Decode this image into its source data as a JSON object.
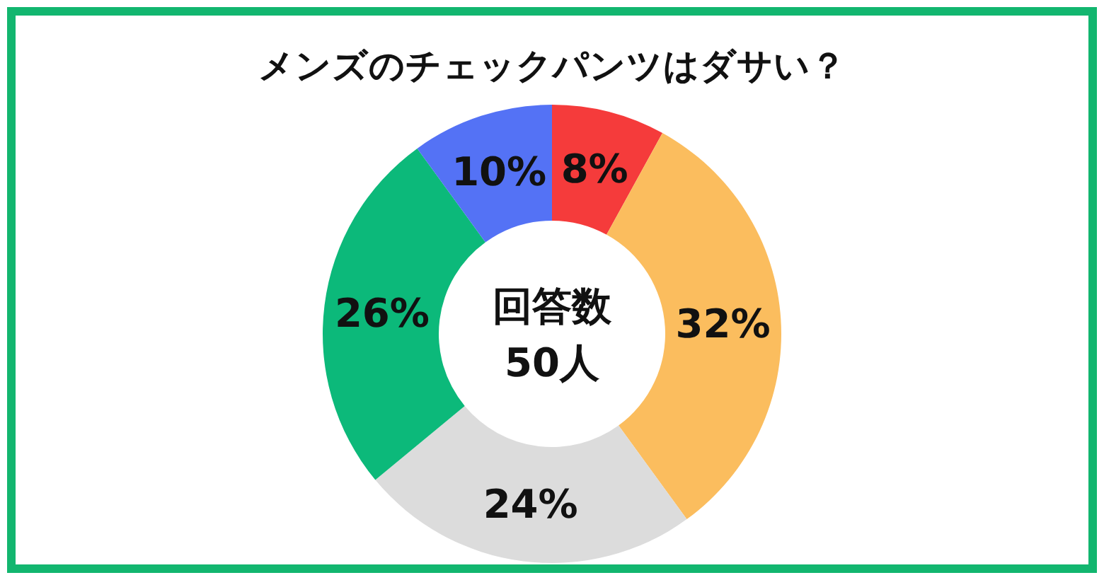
{
  "chart_data": {
    "type": "donut",
    "title": "メンズのチェックパンツはダサい？",
    "categories": [
      null,
      null,
      null,
      null,
      null
    ],
    "values": [
      8,
      32,
      24,
      26,
      10
    ],
    "colors": [
      "#f53b3b",
      "#fbbd5e",
      "#dcdcdc",
      "#0cb97a",
      "#5472f5"
    ],
    "value_labels": [
      "8%",
      "32%",
      "24%",
      "26%",
      "10%"
    ],
    "annotations": [
      "回答数",
      "50人"
    ]
  }
}
